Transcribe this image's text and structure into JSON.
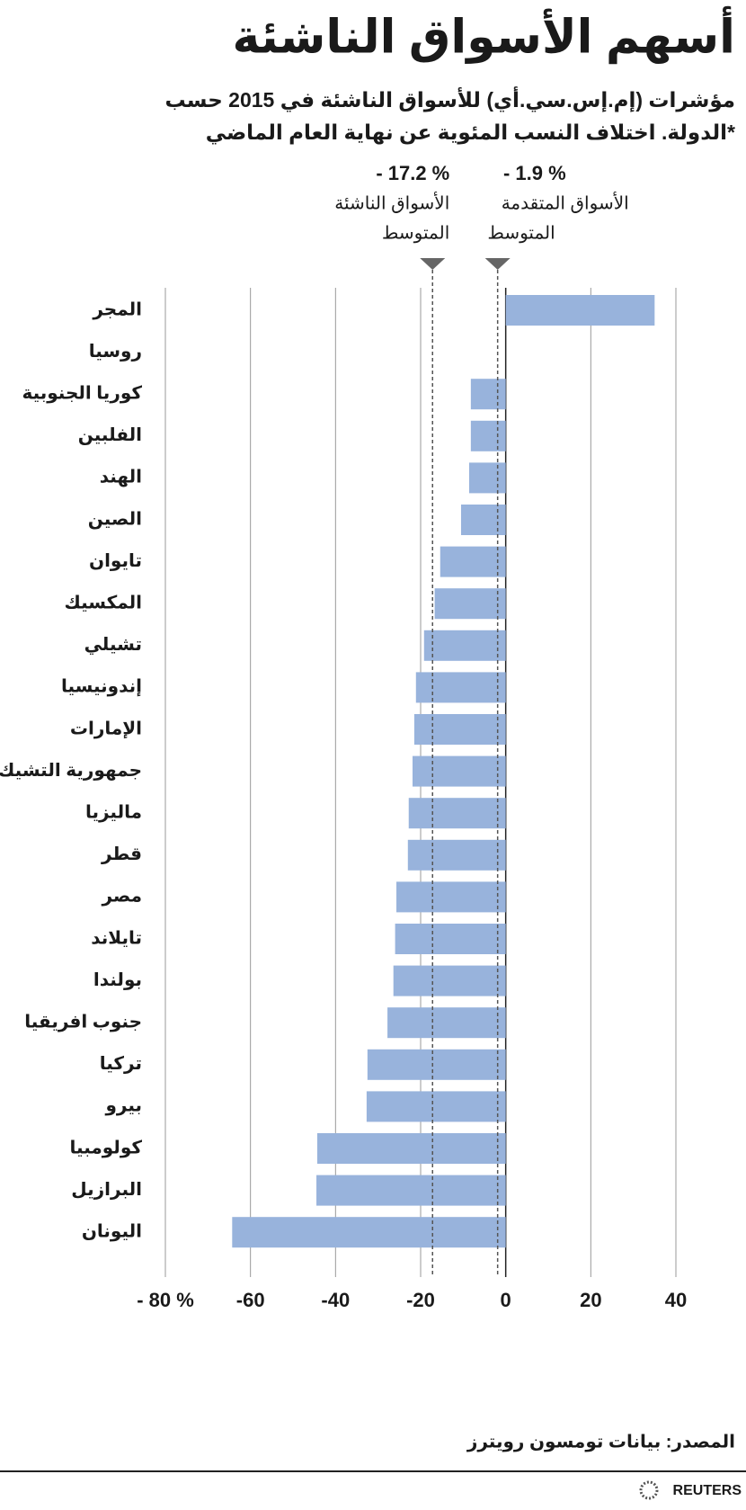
{
  "chart_data": {
    "type": "bar",
    "orientation": "horizontal",
    "title": "أسهم الأسواق الناشئة",
    "subtitle": [
      "مؤشرات (إم.إس.سي.أي) للأسواق الناشئة في 2015 حسب",
      "الدولة. اختلاف النسب المئوية عن نهاية العام الماضي*"
    ],
    "categories": [
      "المجر",
      "روسيا",
      "كوريا الجنوبية",
      "الفلبين",
      "الهند",
      "الصين",
      "تايوان",
      "المكسيك",
      "تشيلي",
      "إندونيسيا",
      "الإمارات",
      "جمهورية التشيك",
      "ماليزيا",
      "قطر",
      "مصر",
      "تايلاند",
      "بولندا",
      "جنوب افريقيا",
      "تركيا",
      "بيرو",
      "كولومبيا",
      "البرازيل",
      "اليونان"
    ],
    "values": [
      35,
      0,
      -8.2,
      -8.2,
      -8.6,
      -10.5,
      -15.4,
      -16.7,
      -19.2,
      -21.1,
      -21.5,
      -21.9,
      -22.8,
      -23,
      -25.7,
      -26,
      -26.4,
      -27.8,
      -32.5,
      -32.7,
      -44.3,
      -44.5,
      -64.3
    ],
    "color": "#98b3dc",
    "xlim": [
      -80,
      40
    ],
    "xticks": [
      {
        "value": -80,
        "label": "- 80 %"
      },
      -60,
      -40,
      -20,
      0,
      20,
      40
    ],
    "grid": true,
    "reference_lines": [
      {
        "value": -17.2,
        "label": "- 17.2 %",
        "name": "الأسواق الناشئة",
        "note": "المتوسط"
      },
      {
        "value": -1.9,
        "label": "- 1.9 %",
        "name": "الأسواق المتقدمة",
        "note": "المتوسط"
      }
    ],
    "source": "المصدر: بيانات تومسون رويترز",
    "logo": "REUTERS"
  }
}
